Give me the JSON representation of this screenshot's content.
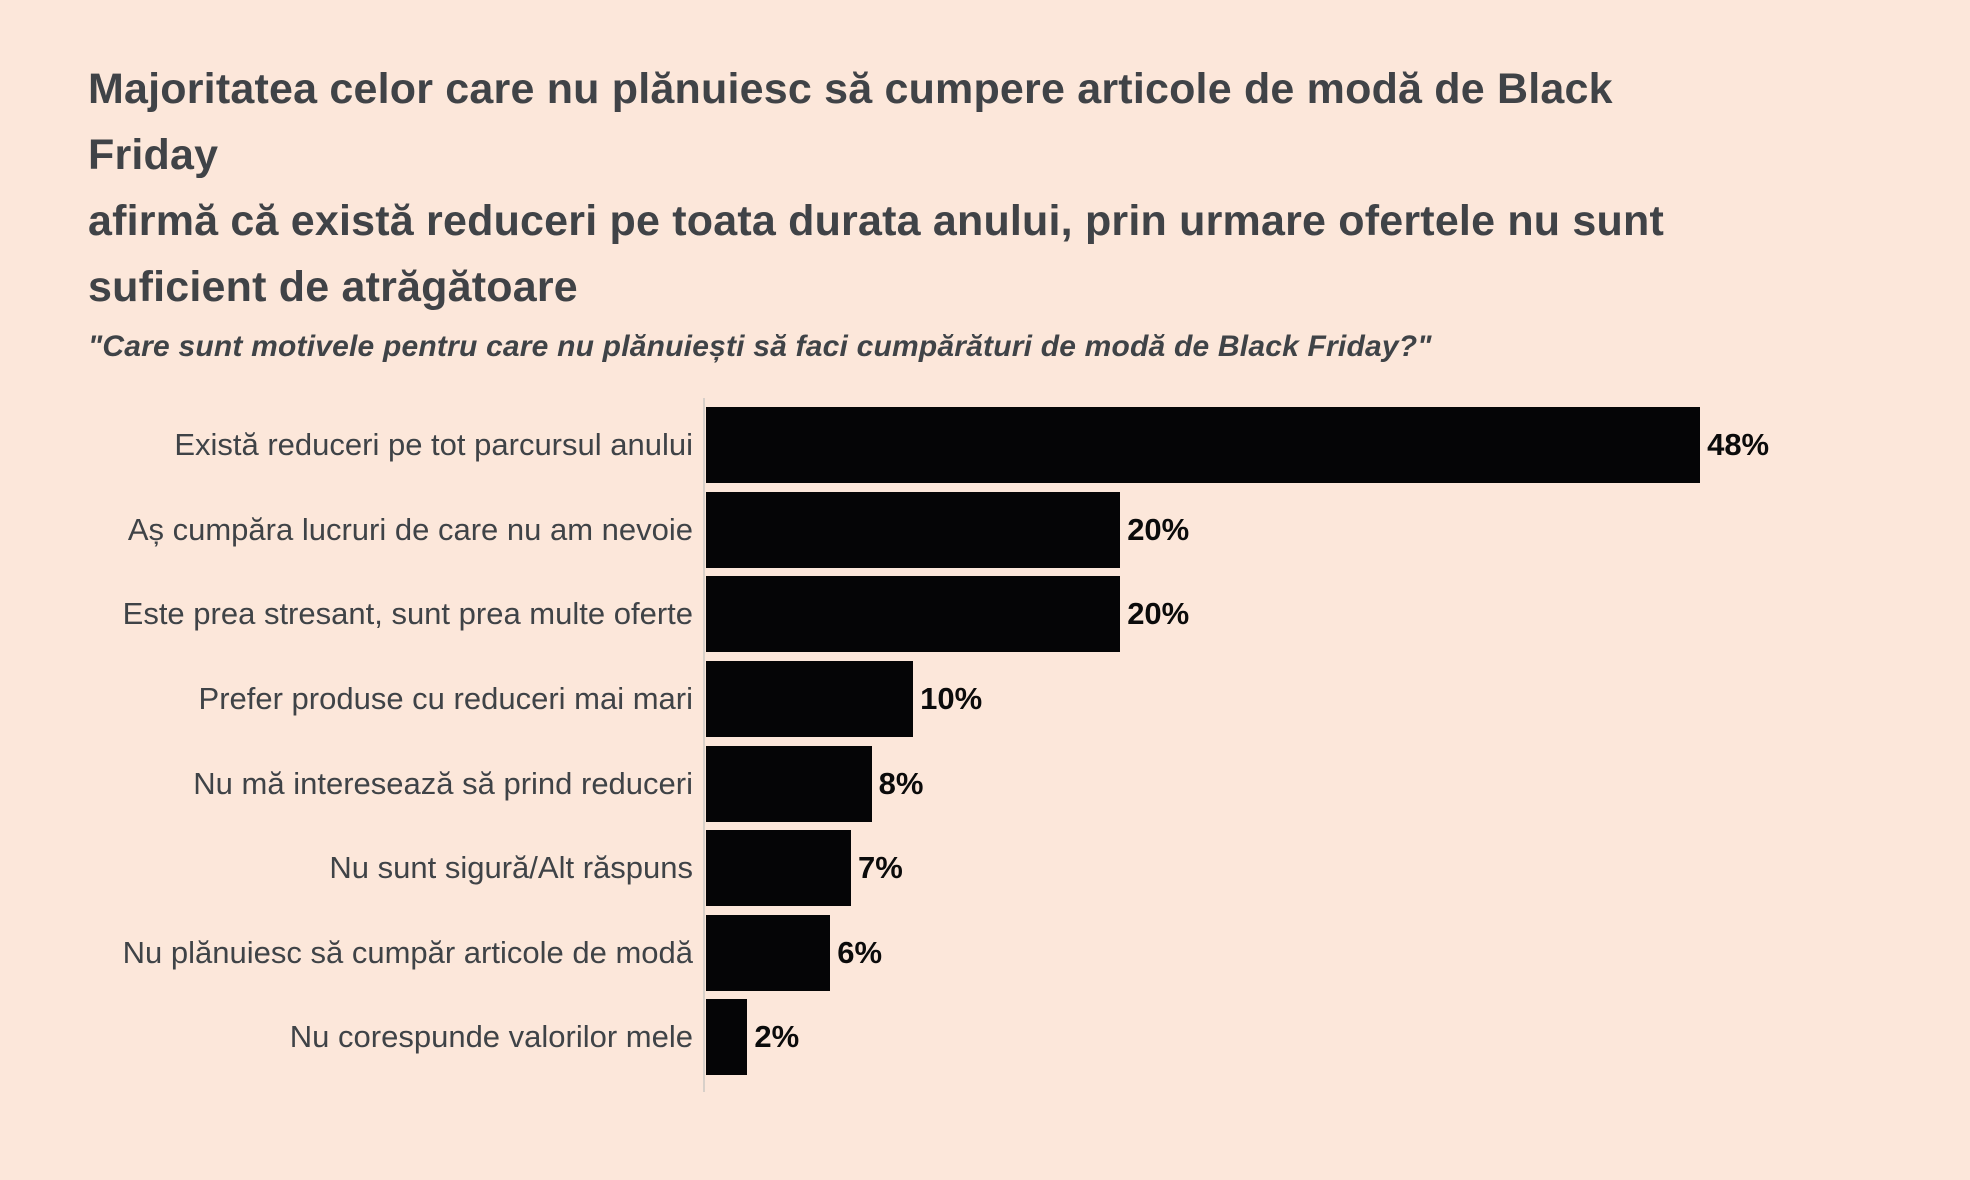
{
  "title_lines": [
    "Majoritatea celor care nu plănuiesc să cumpere articole de modă de Black Friday",
    "afirmă că există reduceri pe toata durata anului, prin urmare ofertele nu sunt",
    "suficient de atrăgătoare"
  ],
  "subtitle": "\"Care sunt motivele pentru care nu plănuiești să faci cumpărături de modă de Black Friday?\"",
  "chart_data": {
    "type": "bar",
    "orientation": "horizontal",
    "title": "Majoritatea celor care nu plănuiesc să cumpere articole de modă de Black Friday afirmă că există reduceri pe toata durata anului, prin urmare ofertele nu sunt suficient de atrăgătoare",
    "subtitle": "\"Care sunt motivele pentru care nu plănuiești să faci cumpărături de modă de Black Friday?\"",
    "categories": [
      "Există reduceri pe tot parcursul anului",
      "Aș cumpăra lucruri de care nu am nevoie",
      "Este prea stresant, sunt prea multe oferte",
      "Prefer produse cu reduceri mai mari",
      "Nu mă interesează să prind reduceri",
      "Nu sunt sigură/Alt răspuns",
      "Nu plănuiesc să cumpăr articole de modă",
      "Nu corespunde valorilor mele"
    ],
    "values": [
      48,
      20,
      20,
      10,
      8,
      7,
      6,
      2
    ],
    "value_labels": [
      "48%",
      "20%",
      "20%",
      "10%",
      "8%",
      "7%",
      "6%",
      "2%"
    ],
    "xlim": [
      0,
      48
    ],
    "grid": false,
    "legend": false,
    "bar_color": "#050506",
    "background_color": "#fce7da",
    "text_color": "#3f4347",
    "axis_line_color": "#d8d0c9"
  }
}
